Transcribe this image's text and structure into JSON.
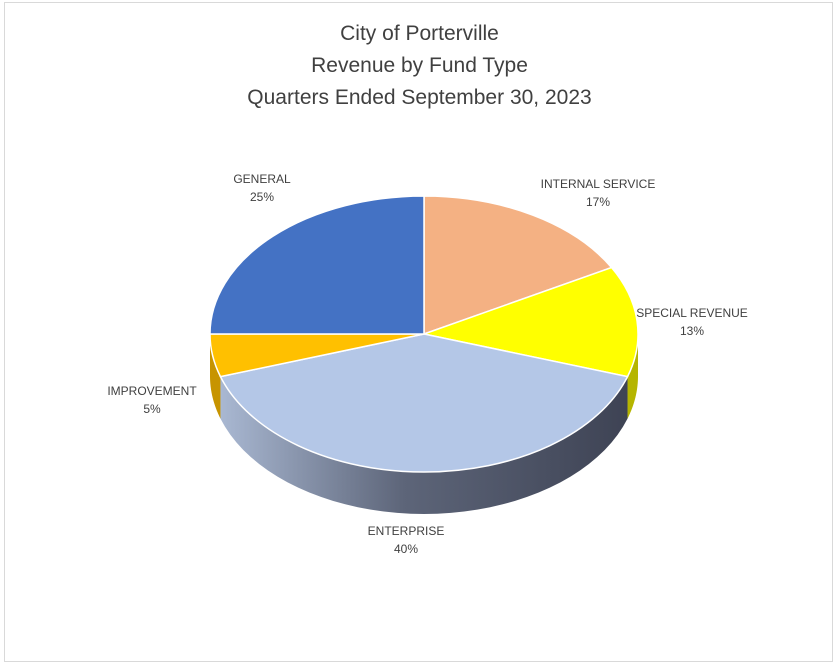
{
  "chart_data": {
    "type": "pie",
    "title_lines": [
      "City of Porterville",
      "Revenue by Fund Type",
      "Quarters Ended September 30, 2023"
    ],
    "slices": [
      {
        "name": "INTERNAL SERVICE",
        "value": 17,
        "label": "17%",
        "color": "#F4B183",
        "side": "#D89A6F"
      },
      {
        "name": "SPECIAL REVENUE",
        "value": 13,
        "label": "13%",
        "color": "#FFFF00",
        "side": "#B5B500"
      },
      {
        "name": "ENTERPRISE",
        "value": 40,
        "label": "40%",
        "color": "#B4C7E7",
        "side": "#4A5064"
      },
      {
        "name": "IMPROVEMENT",
        "value": 5,
        "label": "5%",
        "color": "#FFC000",
        "side": "#C79400"
      },
      {
        "name": "GENERAL",
        "value": 25,
        "label": "25%",
        "color": "#4472C4",
        "side": "#2F528F"
      }
    ],
    "start_angle": "12 o'clock",
    "direction": "clockwise",
    "style": "3d-pie",
    "legend": "none"
  }
}
